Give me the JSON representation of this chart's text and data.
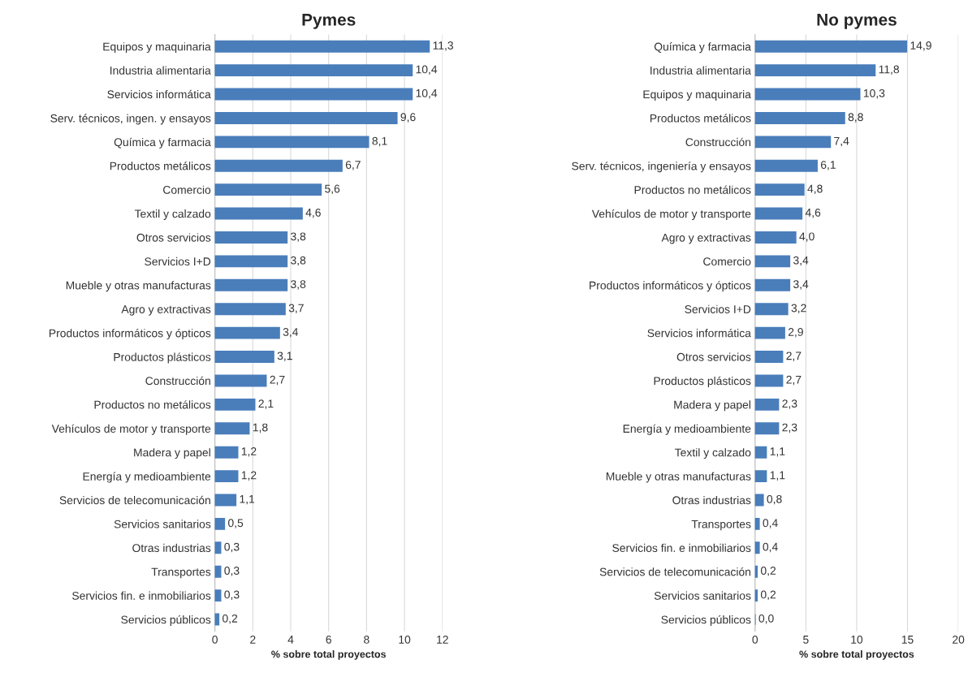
{
  "chart_data": [
    {
      "type": "bar",
      "orientation": "horizontal",
      "title": "Pymes",
      "xlabel": "% sobre total proyectos",
      "color": "#4a7ebb",
      "grid": "x",
      "legend": false,
      "xlim": [
        0,
        12
      ],
      "xticks": [
        0,
        2,
        4,
        6,
        8,
        10,
        12
      ],
      "categories": [
        "Equipos y maquinaria",
        "Industria alimentaria",
        "Servicios informática",
        "Serv. técnicos, ingen. y ensayos",
        "Química y farmacia",
        "Productos metálicos",
        "Comercio",
        "Textil y calzado",
        "Otros servicios",
        "Servicios I+D",
        "Mueble y otras manufacturas",
        "Agro y extractivas",
        "Productos informáticos y ópticos",
        "Productos plásticos",
        "Construcción",
        "Productos no metálicos",
        "Vehículos de motor y transporte",
        "Madera y papel",
        "Energía y medioambiente",
        "Servicios de telecomunicación",
        "Servicios sanitarios",
        "Otras industrias",
        "Transportes",
        "Servicios fin. e inmobiliarios",
        "Servicios públicos"
      ],
      "values": [
        11.3,
        10.4,
        10.4,
        9.6,
        8.1,
        6.7,
        5.6,
        4.6,
        3.8,
        3.8,
        3.8,
        3.7,
        3.4,
        3.1,
        2.7,
        2.1,
        1.8,
        1.2,
        1.2,
        1.1,
        0.5,
        0.3,
        0.3,
        0.3,
        0.2
      ],
      "value_labels": [
        "11,3",
        "10,4",
        "10,4",
        "9,6",
        "8,1",
        "6,7",
        "5,6",
        "4,6",
        "3,8",
        "3,8",
        "3,8",
        "3,7",
        "3,4",
        "3,1",
        "2,7",
        "2,1",
        "1,8",
        "1,2",
        "1,2",
        "1,1",
        "0,5",
        "0,3",
        "0,3",
        "0,3",
        "0,2"
      ]
    },
    {
      "type": "bar",
      "orientation": "horizontal",
      "title": "No pymes",
      "xlabel": "% sobre total proyectos",
      "color": "#4a7ebb",
      "grid": "x",
      "legend": false,
      "xlim": [
        0,
        20
      ],
      "xticks": [
        0,
        5,
        10,
        15,
        20
      ],
      "categories": [
        "Química y farmacia",
        "Industria alimentaria",
        "Equipos y maquinaria",
        "Productos metálicos",
        "Construcción",
        "Serv. técnicos, ingeniería y ensayos",
        "Productos no metálicos",
        "Vehículos de motor y transporte",
        "Agro y extractivas",
        "Comercio",
        "Productos informáticos y ópticos",
        "Servicios I+D",
        "Servicios informática",
        "Otros servicios",
        "Productos plásticos",
        "Madera y papel",
        "Energía y medioambiente",
        "Textil y calzado",
        "Mueble y otras manufacturas",
        "Otras industrias",
        "Transportes",
        "Servicios fin. e inmobiliarios",
        "Servicios de telecomunicación",
        "Servicios sanitarios",
        "Servicios públicos"
      ],
      "values": [
        14.9,
        11.8,
        10.3,
        8.8,
        7.4,
        6.1,
        4.8,
        4.6,
        4.0,
        3.4,
        3.4,
        3.2,
        2.9,
        2.7,
        2.7,
        2.3,
        2.3,
        1.1,
        1.1,
        0.8,
        0.4,
        0.4,
        0.2,
        0.2,
        0.0
      ],
      "value_labels": [
        "14,9",
        "11,8",
        "10,3",
        "8,8",
        "7,4",
        "6,1",
        "4,8",
        "4,6",
        "4,0",
        "3,4",
        "3,4",
        "3,2",
        "2,9",
        "2,7",
        "2,7",
        "2,3",
        "2,3",
        "1,1",
        "1,1",
        "0,8",
        "0,4",
        "0,4",
        "0,2",
        "0,2",
        "0,0"
      ]
    }
  ]
}
